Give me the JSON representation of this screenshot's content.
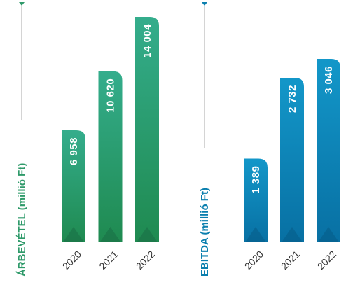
{
  "colors": {
    "revenue": "#2f9a6a",
    "revenue_light": "#36b293",
    "ebitda": "#0a7fae",
    "ebitda_light": "#14a0cf",
    "axis_line": "#a8a8a8"
  },
  "chart_data": [
    {
      "type": "bar",
      "categories": [
        "2020",
        "2021",
        "2022"
      ],
      "values": [
        6958,
        10620,
        14004
      ],
      "value_labels": [
        "6 958",
        "10 620",
        "14 004"
      ],
      "ylabel": "ÁRBEVÉTEL (millió Ft)",
      "ylim": [
        0,
        14004
      ],
      "grid": false
    },
    {
      "type": "bar",
      "categories": [
        "2020",
        "2021",
        "2022"
      ],
      "values": [
        1389,
        2732,
        3046
      ],
      "value_labels": [
        "1 389",
        "2 732",
        "3 046"
      ],
      "ylabel": "EBITDA (millió Ft)",
      "ylim": [
        0,
        3046
      ],
      "grid": false
    }
  ]
}
